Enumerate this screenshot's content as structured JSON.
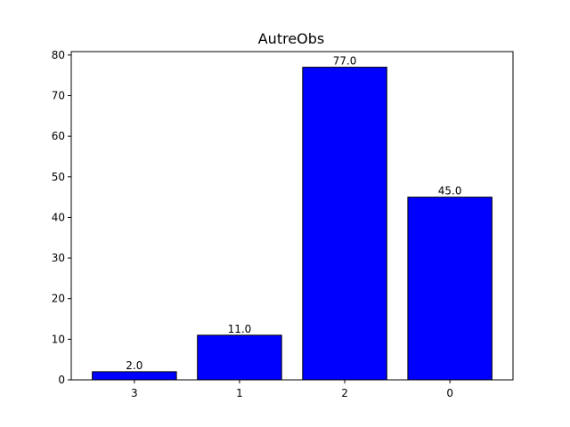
{
  "chart_data": {
    "type": "bar",
    "title": "AutreObs",
    "xlabel": "",
    "ylabel": "",
    "categories": [
      "3",
      "1",
      "2",
      "0"
    ],
    "values": [
      2.0,
      11.0,
      77.0,
      45.0
    ],
    "value_labels": [
      "2.0",
      "11.0",
      "77.0",
      "45.0"
    ],
    "ylim": [
      0,
      80.85
    ],
    "yticks": [
      0,
      10,
      20,
      30,
      40,
      50,
      60,
      70,
      80
    ],
    "ytick_labels": [
      "0",
      "10",
      "20",
      "30",
      "40",
      "50",
      "60",
      "70",
      "80"
    ],
    "grid": false,
    "legend": "none",
    "bar_color": "#0000ff",
    "edge_color": "#000000"
  }
}
